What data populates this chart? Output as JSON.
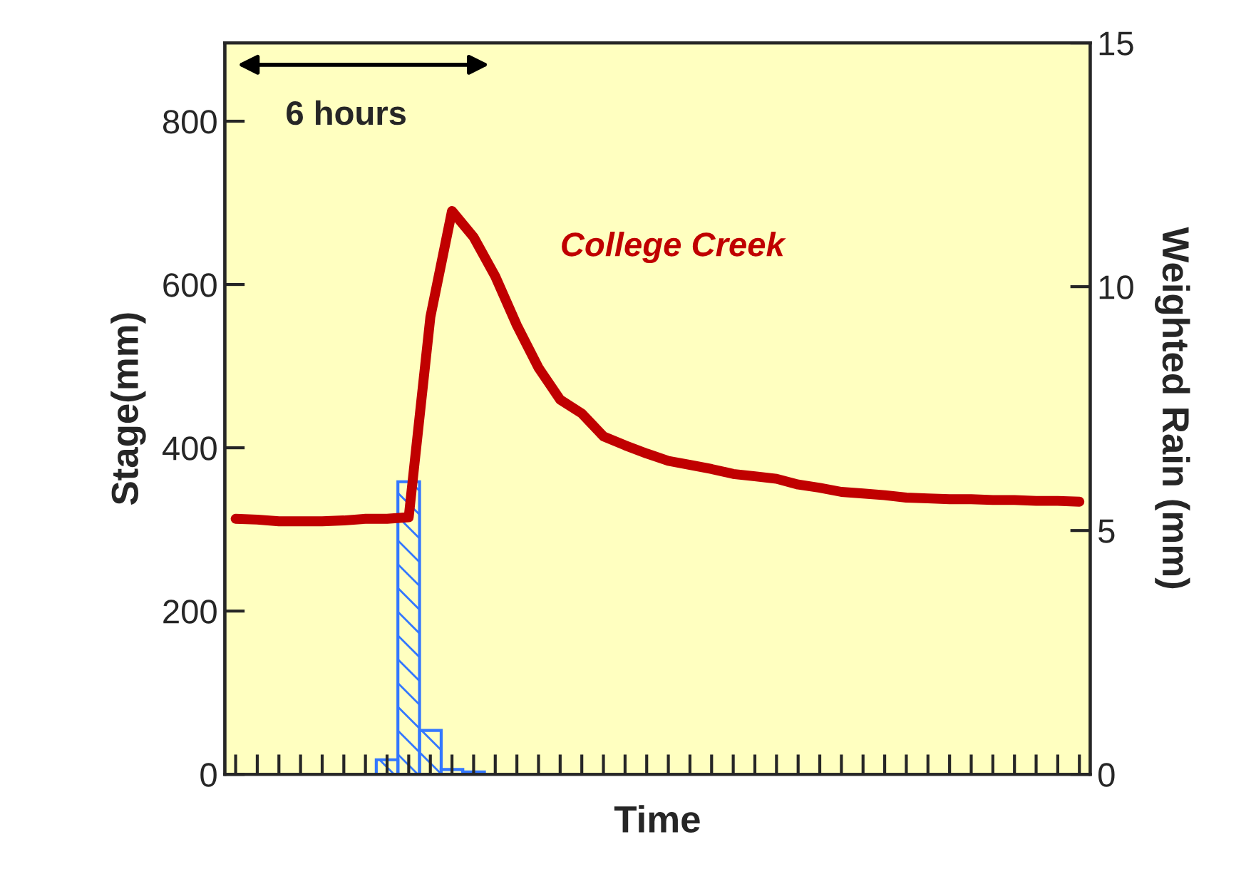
{
  "chart_data": {
    "type": "line",
    "xlabel": "Time",
    "ylabel": "Stage(mm)",
    "y2label": "Weighted Rain (mm)",
    "categories": [
      null,
      null,
      null,
      null,
      null,
      null,
      null,
      null,
      null,
      null,
      null,
      null,
      null,
      null,
      null,
      null,
      null,
      null,
      null,
      null,
      null,
      null,
      null,
      null,
      null,
      null,
      null,
      null,
      null,
      null,
      null,
      null,
      null,
      null,
      null,
      null,
      null,
      null,
      null,
      null
    ],
    "series": [
      {
        "type": "bar",
        "axis": "y2",
        "color": "#3377ff",
        "values": [
          null,
          null,
          null,
          null,
          null,
          null,
          null,
          0.3,
          6.0,
          0.9,
          0.1,
          0.05,
          null,
          null,
          null,
          null,
          null,
          null,
          null,
          null,
          null,
          null,
          null,
          null,
          null,
          null,
          null,
          null,
          null,
          null,
          null,
          null,
          null,
          null,
          null,
          null,
          null,
          null,
          null,
          null
        ]
      },
      {
        "name": "College Creek",
        "color": "#c00000",
        "values": [
          313,
          312,
          310,
          310,
          310,
          311,
          313,
          313,
          315,
          560,
          690,
          658,
          610,
          550,
          498,
          459,
          442,
          414,
          403,
          393,
          384,
          379,
          374,
          368,
          365,
          362,
          355,
          351,
          346,
          344,
          342,
          339,
          338,
          337,
          337,
          336,
          336,
          335,
          335,
          334
        ]
      }
    ],
    "ylim": [
      0,
      896
    ],
    "yticks": [
      0,
      200,
      400,
      600,
      800
    ],
    "y2lim": [
      0,
      15
    ],
    "y2ticks": [
      0,
      5,
      10,
      15
    ],
    "annotations": [
      "6 hours"
    ],
    "legend": false,
    "grid": false
  }
}
